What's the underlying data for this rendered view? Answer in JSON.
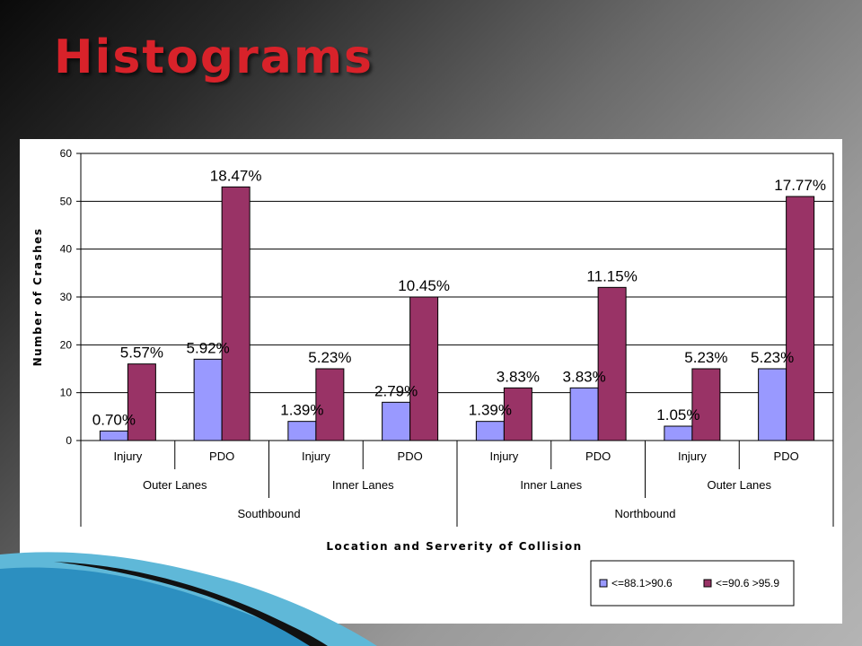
{
  "slide": {
    "title": "Histograms"
  },
  "chart_data": {
    "type": "bar",
    "categories": [
      "Injury",
      "PDO",
      "Injury",
      "PDO",
      "Injury",
      "PDO",
      "Injury",
      "PDO"
    ],
    "group_level_2": [
      "Outer Lanes",
      "Inner Lanes",
      "Inner Lanes",
      "Outer Lanes"
    ],
    "group_level_3": [
      "Southbound",
      "Northbound"
    ],
    "series": [
      {
        "name": "<=88.1>90.6",
        "color": "#9999ff",
        "values": [
          2,
          17,
          4,
          8,
          4,
          11,
          3,
          15
        ],
        "labels": [
          "0.70%",
          "5.92%",
          "1.39%",
          "2.79%",
          "1.39%",
          "3.83%",
          "1.05%",
          "5.23%"
        ]
      },
      {
        "name": "<=90.6 >95.9",
        "color": "#993366",
        "values": [
          16,
          53,
          15,
          30,
          11,
          32,
          15,
          51
        ],
        "labels": [
          "5.57%",
          "18.47%",
          "5.23%",
          "10.45%",
          "3.83%",
          "11.15%",
          "5.23%",
          "17.77%"
        ]
      }
    ],
    "xlabel": "Location and Serverity of Collision",
    "ylabel": "Number of Crashes",
    "ylim": [
      0,
      60
    ],
    "yticks": [
      "0",
      "10",
      "20",
      "30",
      "40",
      "50",
      "60"
    ],
    "grid": true,
    "legend_position": "bottom-right"
  }
}
